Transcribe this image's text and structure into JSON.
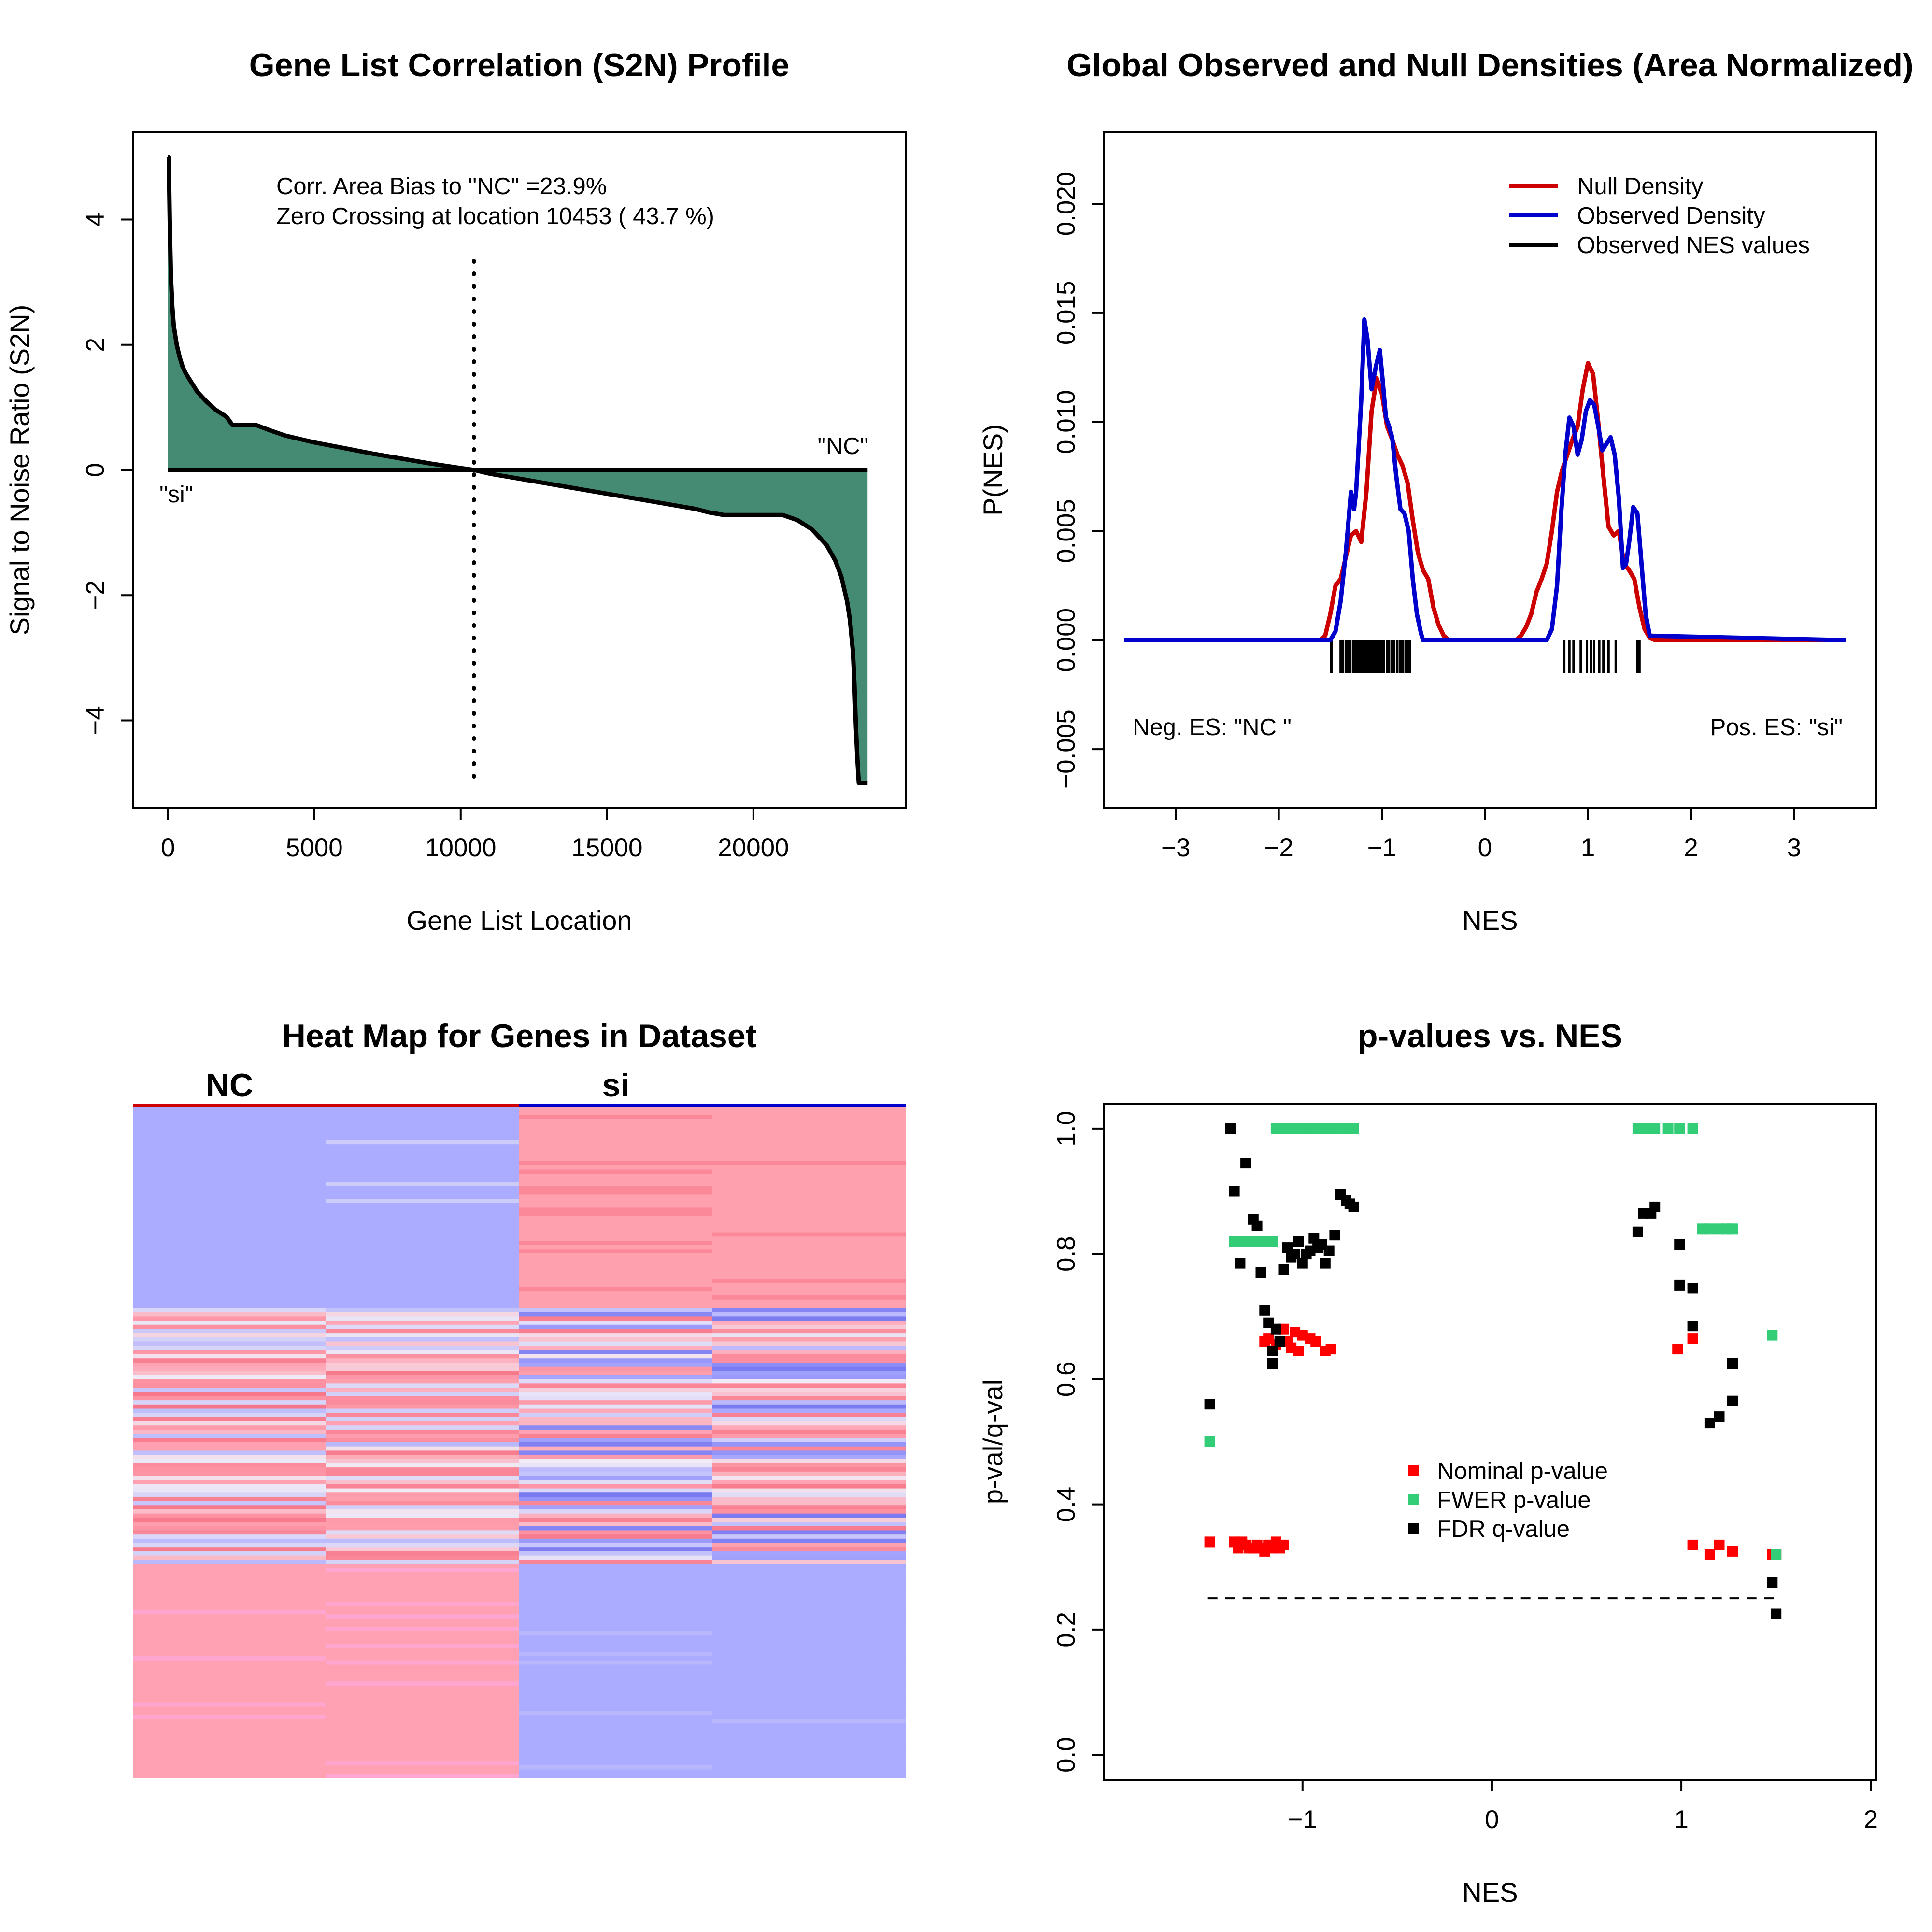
{
  "chart_data": [
    {
      "type": "area",
      "title": "Gene List Correlation (S2N) Profile",
      "xlabel": "Gene List Location",
      "ylabel": "Signal to Noise Ratio (S2N)",
      "xlim": [
        -1200,
        25200
      ],
      "ylim": [
        -5.4,
        5.4
      ],
      "xticks": [
        0,
        5000,
        10000,
        15000,
        20000
      ],
      "xtick_labels": [
        "0",
        "5000",
        "10000",
        "15000",
        "20000"
      ],
      "yticks": [
        -4,
        -2,
        0,
        2,
        4
      ],
      "ytick_labels": [
        "−4",
        "−2",
        "0",
        "2",
        "4"
      ],
      "fill_color": "#458b74",
      "profile_x": [
        0,
        30,
        60,
        100,
        150,
        200,
        300,
        400,
        500,
        600,
        800,
        1000,
        1300,
        1600,
        2000,
        2200,
        3000,
        3500,
        4000,
        5000,
        6000,
        7000,
        8000,
        9000,
        10000,
        10453,
        11000,
        12000,
        13000,
        14000,
        15000,
        16000,
        17000,
        18000,
        18500,
        19000,
        20000,
        21000,
        21500,
        22000,
        22500,
        22800,
        23000,
        23200,
        23300,
        23400,
        23450,
        23500,
        23550,
        23600,
        23650,
        23750,
        23900
      ],
      "profile_y": [
        5.0,
        5.0,
        4.0,
        3.1,
        2.6,
        2.3,
        2.0,
        1.8,
        1.65,
        1.55,
        1.4,
        1.25,
        1.1,
        0.97,
        0.85,
        0.72,
        0.72,
        0.63,
        0.55,
        0.44,
        0.35,
        0.26,
        0.18,
        0.1,
        0.03,
        0.0,
        -0.06,
        -0.14,
        -0.22,
        -0.3,
        -0.38,
        -0.46,
        -0.54,
        -0.62,
        -0.68,
        -0.72,
        -0.72,
        -0.72,
        -0.8,
        -0.95,
        -1.2,
        -1.45,
        -1.7,
        -2.1,
        -2.4,
        -2.9,
        -3.4,
        -4.1,
        -4.6,
        -5.0,
        -5.0,
        -5.0,
        -5.0
      ],
      "zero_crossing": 10453,
      "annotations": {
        "bias": "Corr. Area Bias to \"NC\" =23.9%",
        "crossing": "Zero Crossing at location  10453  ( 43.7  %)",
        "pos_label": "\"NC\"",
        "neg_label": "\"si\""
      }
    },
    {
      "type": "line",
      "title": "Global Observed and Null Densities (Area Normalized)",
      "xlabel": "NES",
      "ylabel": "P(NES)",
      "xlim": [
        -3.7,
        3.8
      ],
      "ylim": [
        -0.0077,
        0.0233
      ],
      "xticks": [
        -3,
        -2,
        -1,
        0,
        1,
        2,
        3
      ],
      "xtick_labels": [
        "−3",
        "−2",
        "−1",
        "0",
        "1",
        "2",
        "3"
      ],
      "yticks": [
        -0.005,
        0.0,
        0.005,
        0.01,
        0.015,
        0.02
      ],
      "ytick_labels": [
        "−0.005",
        "0.000",
        "0.005",
        "0.010",
        "0.015",
        "0.020"
      ],
      "series": [
        {
          "name": "Null Density",
          "color": "#cc0000",
          "x": [
            -3.5,
            -1.6,
            -1.55,
            -1.5,
            -1.45,
            -1.4,
            -1.35,
            -1.3,
            -1.25,
            -1.2,
            -1.15,
            -1.1,
            -1.05,
            -1.0,
            -0.95,
            -0.9,
            -0.85,
            -0.8,
            -0.75,
            -0.7,
            -0.65,
            -0.6,
            -0.55,
            -0.5,
            -0.45,
            -0.4,
            -0.35,
            -0.3,
            0.3,
            0.35,
            0.4,
            0.45,
            0.5,
            0.55,
            0.6,
            0.65,
            0.7,
            0.75,
            0.8,
            0.85,
            0.9,
            0.95,
            1.0,
            1.05,
            1.1,
            1.15,
            1.2,
            1.25,
            1.3,
            1.35,
            1.4,
            1.45,
            1.5,
            1.55,
            1.6,
            1.65,
            3.5
          ],
          "y": [
            0,
            0,
            0.0002,
            0.0012,
            0.0025,
            0.0028,
            0.0038,
            0.0048,
            0.005,
            0.0045,
            0.0068,
            0.0105,
            0.012,
            0.0113,
            0.0098,
            0.0092,
            0.0085,
            0.008,
            0.0072,
            0.0055,
            0.004,
            0.0032,
            0.0028,
            0.0015,
            0.0007,
            0.0002,
            0,
            0,
            0,
            0.0002,
            0.0006,
            0.0012,
            0.0022,
            0.0028,
            0.0035,
            0.005,
            0.0068,
            0.0078,
            0.0085,
            0.0092,
            0.0098,
            0.0115,
            0.0127,
            0.0122,
            0.01,
            0.0075,
            0.0052,
            0.0048,
            0.005,
            0.0035,
            0.0032,
            0.0028,
            0.0015,
            0.0005,
            0.0001,
            0,
            0
          ]
        },
        {
          "name": "Observed Density",
          "color": "#0000cc",
          "x": [
            -3.5,
            -1.5,
            -1.45,
            -1.4,
            -1.35,
            -1.3,
            -1.27,
            -1.25,
            -1.2,
            -1.17,
            -1.14,
            -1.1,
            -1.06,
            -1.02,
            -0.99,
            -0.96,
            -0.93,
            -0.9,
            -0.86,
            -0.82,
            -0.78,
            -0.74,
            -0.7,
            -0.66,
            -0.62,
            -0.6,
            0.6,
            0.65,
            0.7,
            0.74,
            0.78,
            0.82,
            0.86,
            0.9,
            0.94,
            0.98,
            1.02,
            1.06,
            1.1,
            1.14,
            1.18,
            1.22,
            1.26,
            1.3,
            1.34,
            1.37,
            1.4,
            1.44,
            1.48,
            1.52,
            1.56,
            1.6,
            3.5
          ],
          "y": [
            0,
            0,
            0.0004,
            0.0018,
            0.004,
            0.0068,
            0.006,
            0.0068,
            0.011,
            0.0147,
            0.0138,
            0.0115,
            0.0125,
            0.0133,
            0.0118,
            0.0102,
            0.0098,
            0.0093,
            0.0075,
            0.006,
            0.0058,
            0.005,
            0.0028,
            0.0012,
            0.0003,
            0,
            0,
            0.0005,
            0.0025,
            0.0058,
            0.0085,
            0.0102,
            0.0098,
            0.0085,
            0.0092,
            0.0105,
            0.011,
            0.0108,
            0.0098,
            0.0087,
            0.009,
            0.0093,
            0.0085,
            0.0065,
            0.0033,
            0.0035,
            0.0045,
            0.0061,
            0.0058,
            0.0035,
            0.0012,
            0.0002,
            0
          ]
        }
      ],
      "observed_nes_name": "Observed NES values",
      "observed_nes": [
        -1.49,
        -1.4,
        -1.38,
        -1.35,
        -1.33,
        -1.31,
        -1.28,
        -1.26,
        -1.24,
        -1.22,
        -1.2,
        -1.18,
        -1.16,
        -1.14,
        -1.12,
        -1.1,
        -1.08,
        -1.06,
        -1.04,
        -1.02,
        -1.0,
        -0.98,
        -0.95,
        -0.93,
        -0.9,
        -0.88,
        -0.85,
        -0.82,
        -0.8,
        -0.77,
        -0.75,
        -0.73,
        0.77,
        0.82,
        0.86,
        0.93,
        0.99,
        1.03,
        1.06,
        1.11,
        1.15,
        1.2,
        1.27,
        1.48,
        1.5
      ],
      "annotations": {
        "neg": "Neg. ES: \"NC \"",
        "pos": "Pos. ES: \"si\""
      },
      "legend_position": "top-right"
    },
    {
      "type": "heatmap",
      "title": "Heat Map for Genes in Dataset",
      "group_labels": [
        "NC",
        "si"
      ],
      "group_colors": [
        "#cc0000",
        "#0000cc"
      ],
      "columns": 4,
      "colors": {
        "low": "#aaaaff",
        "high": "#ffa1b0",
        "mid": "#e8e0f0"
      }
    },
    {
      "type": "scatter",
      "title": "p-values vs. NES",
      "xlabel": "NES",
      "ylabel": "p-val/q-val",
      "xlim": [
        -2.05,
        2.03
      ],
      "ylim": [
        -0.04,
        1.04
      ],
      "xticks": [
        -1,
        0,
        1,
        2
      ],
      "xtick_labels": [
        "−1",
        "0",
        "1",
        "2"
      ],
      "yticks": [
        0.0,
        0.2,
        0.4,
        0.6,
        0.8,
        1.0
      ],
      "ytick_labels": [
        "0.0",
        "0.2",
        "0.4",
        "0.6",
        "0.8",
        "1.0"
      ],
      "threshold": {
        "y": 0.25,
        "x": [
          -1.5,
          1.5
        ]
      },
      "series": [
        {
          "name": "Nominal p-value",
          "color": "#ff0000",
          "x": [
            -1.49,
            -1.36,
            -1.34,
            -1.32,
            -1.3,
            -1.28,
            -1.26,
            -1.24,
            -1.22,
            -1.2,
            -1.18,
            -1.16,
            -1.14,
            -1.12,
            -1.1,
            -1.2,
            -1.18,
            -1.14,
            -1.1,
            -1.08,
            -1.06,
            -1.04,
            -1.02,
            -1.0,
            -0.96,
            -0.93,
            -0.88,
            -0.85,
            0.98,
            1.06,
            1.06,
            1.15,
            1.2,
            1.27,
            1.48,
            1.5
          ],
          "y": [
            0.34,
            0.34,
            0.33,
            0.34,
            0.335,
            0.33,
            0.33,
            0.335,
            0.33,
            0.325,
            0.335,
            0.33,
            0.34,
            0.33,
            0.335,
            0.66,
            0.665,
            0.655,
            0.68,
            0.66,
            0.65,
            0.675,
            0.645,
            0.67,
            0.665,
            0.66,
            0.645,
            0.648,
            0.648,
            0.665,
            0.335,
            0.32,
            0.335,
            0.325,
            0.32,
            0.32
          ]
        },
        {
          "name": "FWER p-value",
          "color": "#33cc77",
          "x": [
            -1.49,
            -1.36,
            -1.34,
            -1.32,
            -1.3,
            -1.28,
            -1.26,
            -1.24,
            -1.22,
            -1.2,
            -1.18,
            -1.16,
            -1.14,
            -1.12,
            -1.1,
            -1.08,
            -1.06,
            -1.04,
            -1.02,
            -1.0,
            -0.98,
            -0.96,
            -0.93,
            -0.9,
            -0.88,
            -0.85,
            -0.82,
            -0.8,
            -0.77,
            -0.75,
            -0.73,
            0.77,
            0.8,
            0.82,
            0.84,
            0.86,
            0.93,
            0.99,
            1.06,
            1.11,
            1.15,
            1.2,
            1.24,
            1.27,
            1.48,
            1.5
          ],
          "y": [
            0.5,
            0.82,
            0.82,
            0.82,
            0.82,
            0.82,
            0.82,
            0.82,
            0.82,
            0.82,
            0.82,
            0.82,
            1.0,
            1.0,
            1.0,
            1.0,
            1.0,
            1.0,
            1.0,
            1.0,
            1.0,
            1.0,
            1.0,
            1.0,
            1.0,
            1.0,
            1.0,
            1.0,
            1.0,
            1.0,
            1.0,
            1.0,
            1.0,
            1.0,
            1.0,
            1.0,
            1.0,
            1.0,
            1.0,
            0.84,
            0.84,
            0.84,
            0.84,
            0.84,
            0.67,
            0.32
          ]
        },
        {
          "name": "FDR q-value",
          "color": "#000000",
          "x": [
            -1.49,
            -1.38,
            -1.36,
            -1.33,
            -1.3,
            -1.26,
            -1.24,
            -1.22,
            -1.2,
            -1.18,
            -1.16,
            -1.16,
            -1.14,
            -1.12,
            -1.1,
            -1.08,
            -1.06,
            -1.04,
            -1.02,
            -1.0,
            -0.98,
            -0.96,
            -0.94,
            -0.92,
            -0.9,
            -0.88,
            -0.86,
            -0.83,
            -0.8,
            -0.77,
            -0.75,
            -0.73,
            0.77,
            0.8,
            0.84,
            0.86,
            0.99,
            0.99,
            1.06,
            1.06,
            1.15,
            1.2,
            1.27,
            1.27,
            1.48,
            1.5
          ],
          "y": [
            0.56,
            1.0,
            0.9,
            0.785,
            0.945,
            0.855,
            0.845,
            0.77,
            0.71,
            0.69,
            0.645,
            0.625,
            0.68,
            0.66,
            0.775,
            0.81,
            0.795,
            0.8,
            0.82,
            0.785,
            0.8,
            0.805,
            0.825,
            0.81,
            0.815,
            0.785,
            0.805,
            0.83,
            0.895,
            0.885,
            0.88,
            0.875,
            0.835,
            0.865,
            0.865,
            0.875,
            0.815,
            0.75,
            0.745,
            0.685,
            0.53,
            0.54,
            0.565,
            0.625,
            0.275,
            0.225
          ]
        }
      ],
      "legend_position": "center-right"
    }
  ]
}
